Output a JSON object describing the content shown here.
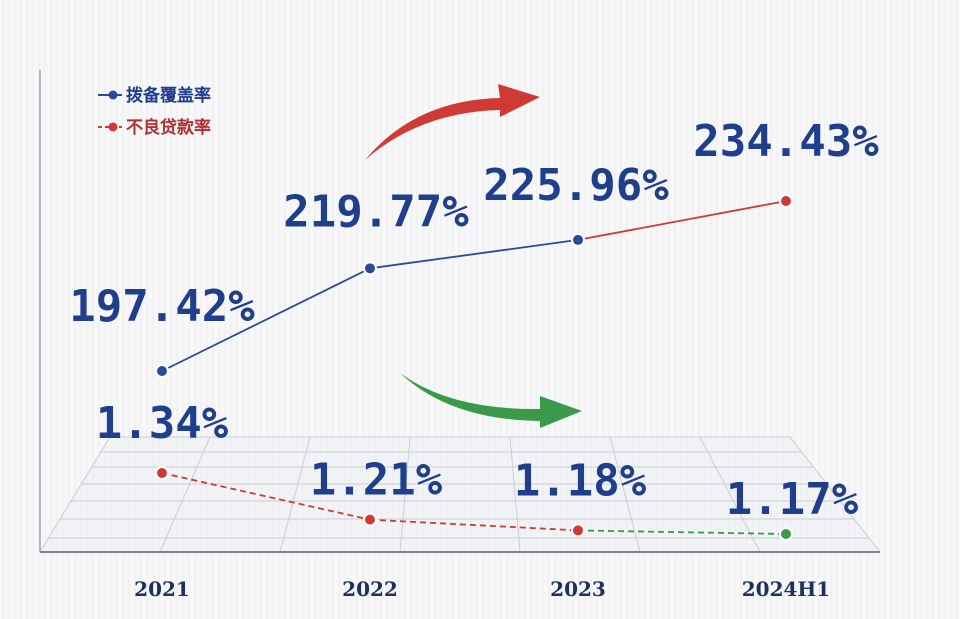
{
  "chart_data": {
    "type": "line",
    "categories": [
      "2021",
      "2022",
      "2023",
      "2024H1"
    ],
    "series": [
      {
        "name": "拨备覆盖率",
        "values": [
          197.42,
          219.77,
          225.96,
          234.43
        ],
        "labels": [
          "197.42%",
          "219.77%",
          "225.96%",
          "234.43%"
        ],
        "color": "#2a4a9a",
        "highlight_color": "#d03a35",
        "style": "solid"
      },
      {
        "name": "不良贷款率",
        "values": [
          1.34,
          1.21,
          1.18,
          1.17
        ],
        "labels": [
          "1.34%",
          "1.21%",
          "1.18%",
          "1.17%"
        ],
        "color": "#d03a35",
        "highlight_color": "#3a9a4a",
        "style": "dashed"
      }
    ],
    "legend_position": "top-left",
    "arrows": [
      {
        "trend": "up",
        "color": "#d03a35"
      },
      {
        "trend": "down",
        "color": "#3a9a4a"
      }
    ]
  }
}
